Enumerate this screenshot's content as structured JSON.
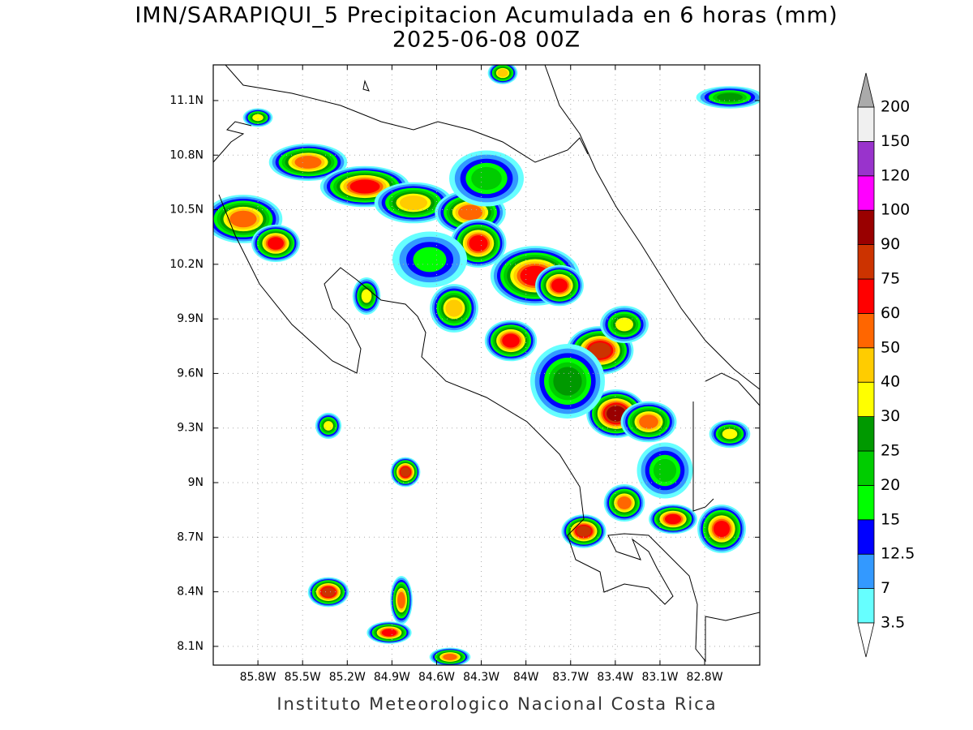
{
  "chart_data": {
    "type": "map",
    "title": "IMN/SARAPIQUI_5 Precipitacion Acumulada en 6 horas (mm)",
    "subtitle": "2025-06-08 00Z",
    "footer": "Instituto Meteorologico Nacional Costa Rica",
    "xlim": [
      -86.1,
      -82.43
    ],
    "ylim": [
      7.997,
      11.296
    ],
    "xticks": [
      {
        "value": -85.8,
        "label": "85.8W"
      },
      {
        "value": -85.5,
        "label": "85.5W"
      },
      {
        "value": -85.2,
        "label": "85.2W"
      },
      {
        "value": -84.9,
        "label": "84.9W"
      },
      {
        "value": -84.6,
        "label": "84.6W"
      },
      {
        "value": -84.3,
        "label": "84.3W"
      },
      {
        "value": -84.0,
        "label": "84W"
      },
      {
        "value": -83.7,
        "label": "83.7W"
      },
      {
        "value": -83.4,
        "label": "83.4W"
      },
      {
        "value": -83.1,
        "label": "83.1W"
      },
      {
        "value": -82.8,
        "label": "82.8W"
      }
    ],
    "yticks": [
      {
        "value": 8.1,
        "label": "8.1N"
      },
      {
        "value": 8.4,
        "label": "8.4N"
      },
      {
        "value": 8.7,
        "label": "8.7N"
      },
      {
        "value": 9.0,
        "label": "9N"
      },
      {
        "value": 9.3,
        "label": "9.3N"
      },
      {
        "value": 9.6,
        "label": "9.6N"
      },
      {
        "value": 9.9,
        "label": "9.9N"
      },
      {
        "value": 10.2,
        "label": "10.2N"
      },
      {
        "value": 10.5,
        "label": "10.5N"
      },
      {
        "value": 10.8,
        "label": "10.8N"
      },
      {
        "value": 11.1,
        "label": "11.1N"
      }
    ],
    "grid": true,
    "colorbar": {
      "levels": [
        3.5,
        7,
        12.5,
        15,
        20,
        25,
        30,
        40,
        50,
        60,
        75,
        90,
        100,
        120,
        150,
        200
      ],
      "colors": [
        "#66ffff",
        "#3399ff",
        "#0000ff",
        "#00ff00",
        "#00cc00",
        "#009900",
        "#ffff00",
        "#ffcc00",
        "#ff6600",
        "#ff0000",
        "#cc3300",
        "#990000",
        "#ff00ff",
        "#9933cc",
        "#f0f0f0"
      ],
      "under_color": "#ffffff",
      "over_color": "#aaaaaa"
    }
  }
}
